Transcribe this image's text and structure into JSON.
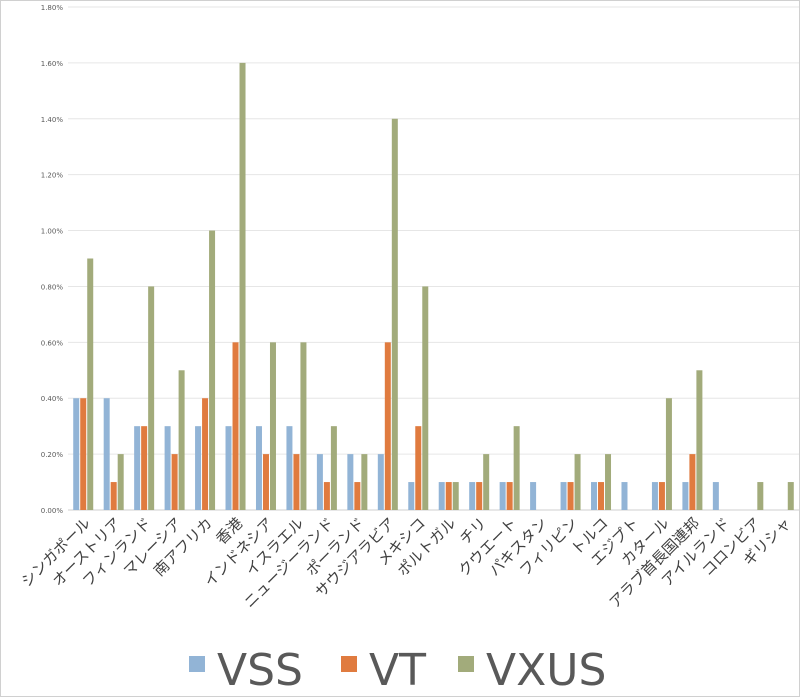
{
  "chart_data": {
    "type": "bar",
    "title": "",
    "xlabel": "",
    "ylabel": "",
    "ylim": [
      0,
      1.8
    ],
    "yticks": [
      "0.00%",
      "0.20%",
      "0.40%",
      "0.60%",
      "0.80%",
      "1.00%",
      "1.20%",
      "1.40%",
      "1.60%",
      "1.80%"
    ],
    "grid": true,
    "legend_placement": "bottom",
    "categories": [
      "シンガポール",
      "オーストリア",
      "フィンランド",
      "マレーシア",
      "南アフリカ",
      "香港",
      "インドネシア",
      "イスラエル",
      "ニュージーランド",
      "ポーランド",
      "サウジアラビア",
      "メキシコ",
      "ポルトガル",
      "チリ",
      "クウエート",
      "パキスタン",
      "フィリピン",
      "トルコ",
      "エジプト",
      "カタール",
      "アラブ首長国連邦",
      "アイルランド",
      "コロンビア",
      "ギリシャ"
    ],
    "series": [
      {
        "name": "VSS",
        "color": "#92b4d6",
        "values": [
          0.4,
          0.4,
          0.3,
          0.3,
          0.3,
          0.3,
          0.3,
          0.3,
          0.2,
          0.2,
          0.2,
          0.1,
          0.1,
          0.1,
          0.1,
          0.1,
          0.1,
          0.1,
          0.1,
          0.1,
          0.1,
          0.1,
          0,
          0
        ]
      },
      {
        "name": "VT",
        "color": "#e07b3f",
        "values": [
          0.4,
          0.1,
          0.3,
          0.2,
          0.4,
          0.6,
          0.2,
          0.2,
          0.1,
          0.1,
          0.6,
          0.3,
          0.1,
          0.1,
          0.1,
          0,
          0.1,
          0.1,
          0,
          0.1,
          0.2,
          0,
          0,
          0
        ]
      },
      {
        "name": "VXUS",
        "color": "#a2ab7b",
        "values": [
          0.9,
          0.2,
          0.8,
          0.5,
          1.0,
          1.6,
          0.6,
          0.6,
          0.3,
          0.2,
          1.4,
          0.8,
          0.1,
          0.2,
          0.3,
          0,
          0.2,
          0.2,
          0,
          0.4,
          0.5,
          0,
          0.1,
          0.1
        ]
      }
    ]
  }
}
